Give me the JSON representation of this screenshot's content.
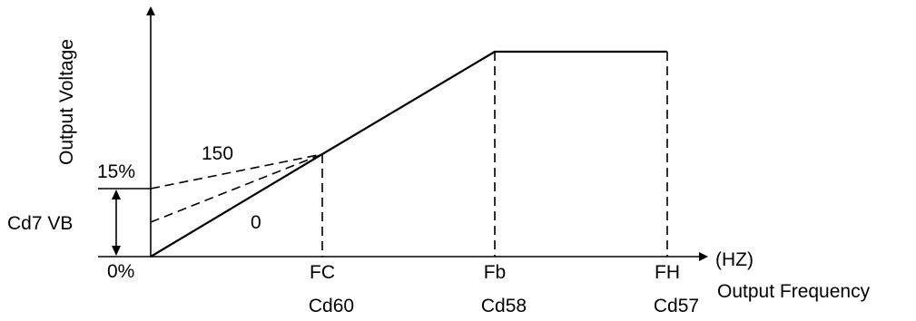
{
  "diagram": {
    "y_axis_title": "Output Voltage",
    "x_axis_title": "Output Frequency",
    "x_unit": "(HZ)",
    "y_ticks": {
      "top": "15%",
      "bottom": "0%"
    },
    "boost_label": "Cd7 VB",
    "curve_labels": {
      "upper": "150",
      "lower": "0"
    },
    "x_points": [
      {
        "name": "FC",
        "code": "Cd60"
      },
      {
        "name": "Fb",
        "code": "Cd58"
      },
      {
        "name": "FH",
        "code": "Cd57"
      }
    ]
  }
}
